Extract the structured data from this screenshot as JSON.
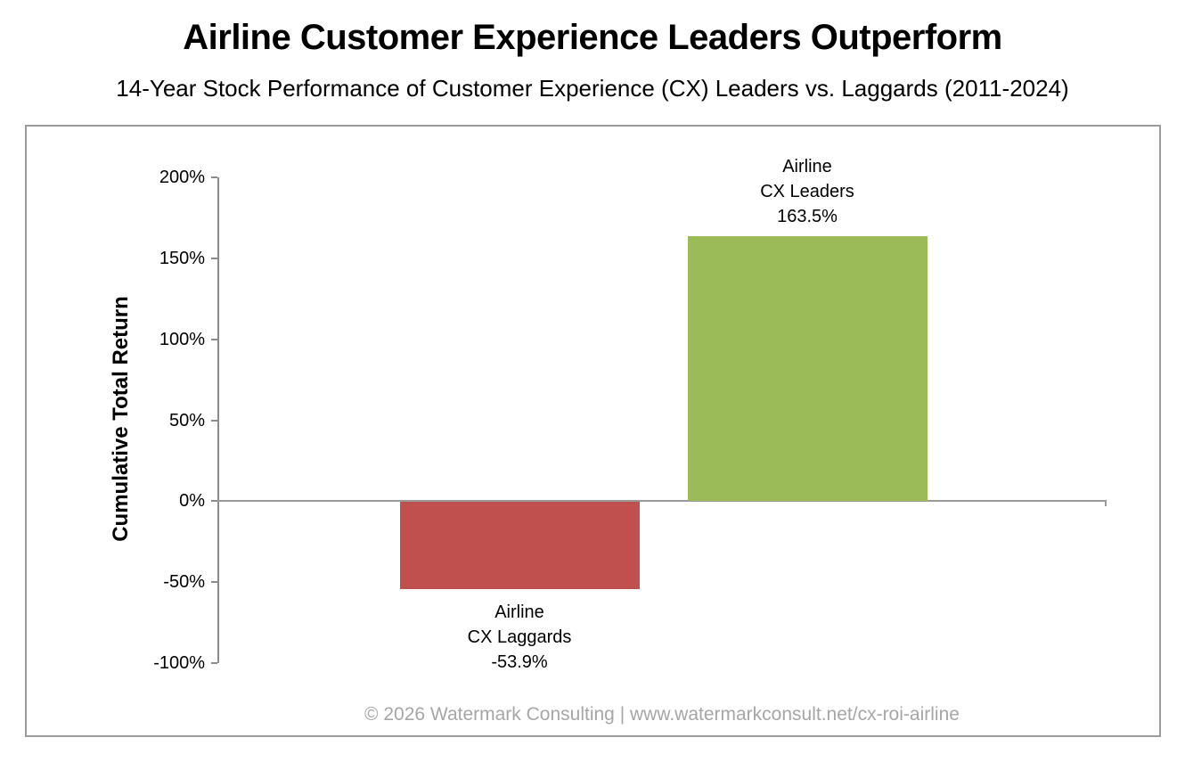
{
  "header": {
    "title": "Airline Customer Experience Leaders Outperform",
    "subtitle": "14-Year Stock Performance of Customer Experience (CX) Leaders vs. Laggards (2011-2024)"
  },
  "footer": {
    "text": "© 2026 Watermark Consulting | www.watermarkconsult.net/cx-roi-airline"
  },
  "chart_data": {
    "type": "bar",
    "title": "Airline Customer Experience Leaders Outperform",
    "subtitle": "14-Year Stock Performance of Customer Experience (CX) Leaders vs. Laggards (2011-2024)",
    "xlabel": "",
    "ylabel": "Cumulative Total Return",
    "ylim": [
      -100,
      200
    ],
    "yticks": [
      200,
      150,
      100,
      50,
      0,
      -50,
      -100
    ],
    "ytick_labels": [
      "200%",
      "150%",
      "100%",
      "50%",
      "0%",
      "-50%",
      "-100%"
    ],
    "grid": false,
    "legend": "none",
    "categories": [
      "Airline CX Laggards",
      "Airline CX Leaders"
    ],
    "values": [
      -53.9,
      163.5
    ],
    "bars": [
      {
        "name": "airline-cx-laggards",
        "label_lines": [
          "Airline",
          "CX Laggards"
        ],
        "value": -53.9,
        "value_label": "-53.9%",
        "color": "#C0504D",
        "label_position": "below"
      },
      {
        "name": "airline-cx-leaders",
        "label_lines": [
          "Airline",
          "CX Leaders"
        ],
        "value": 163.5,
        "value_label": "163.5%",
        "color": "#9BBB59",
        "label_position": "above"
      }
    ]
  },
  "colors": {
    "axis": "#8B8B8B",
    "zero_line": "#9A9A9A",
    "frame_border": "#9C9C9C",
    "footer_text": "#A6A6A6",
    "negative_bar": "#C0504D",
    "positive_bar": "#9BBB59"
  }
}
